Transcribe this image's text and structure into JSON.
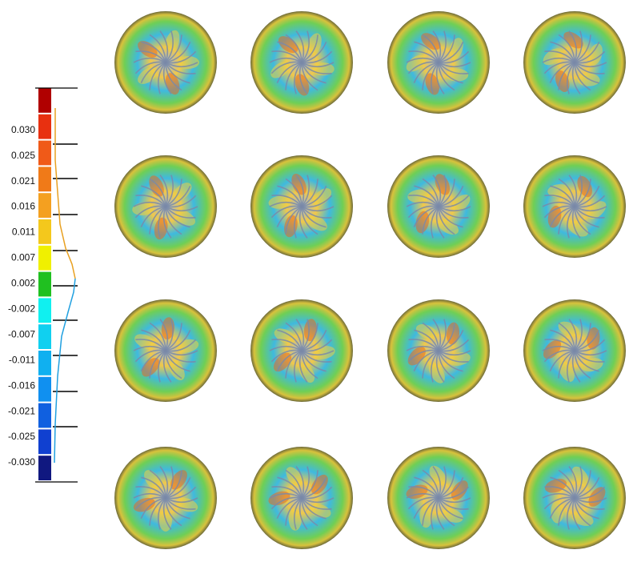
{
  "colorbar": {
    "labels": [
      "0.030",
      "0.025",
      "0.021",
      "0.016",
      "0.011",
      "0.007",
      "0.002",
      "-0.002",
      "-0.007",
      "-0.011",
      "-0.016",
      "-0.021",
      "-0.025",
      "-0.030"
    ]
  }
}
